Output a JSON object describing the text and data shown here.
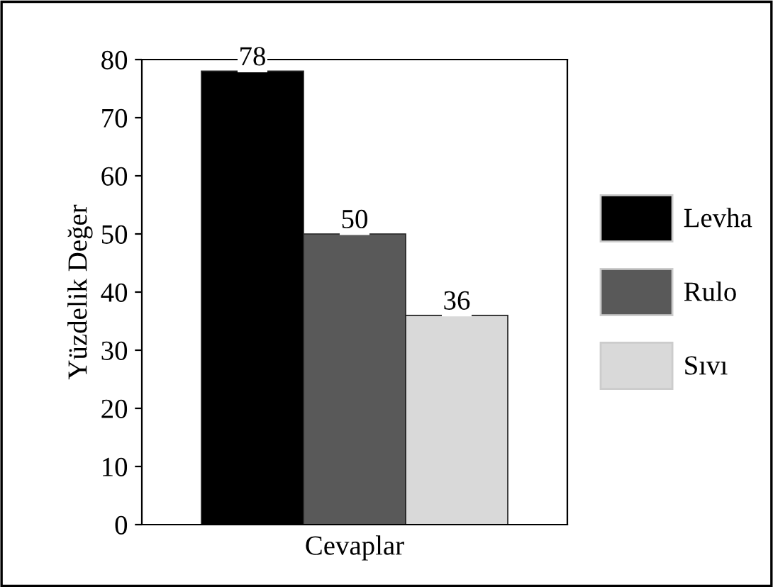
{
  "chart_data": {
    "type": "bar",
    "categories": [
      null
    ],
    "xlabel": "Cevaplar",
    "ylabel": "Yüzdelik Değer",
    "series": [
      {
        "name": "Levha",
        "color": "#000000",
        "values": [
          78
        ]
      },
      {
        "name": "Rulo",
        "color": "#595959",
        "values": [
          50
        ]
      },
      {
        "name": "Sıvı",
        "color": "#d9d9d9",
        "values": [
          36
        ]
      }
    ],
    "ylim": [
      0,
      80
    ],
    "yticks": [
      0,
      10,
      20,
      30,
      40,
      50,
      60,
      70,
      80
    ],
    "data_labels": true,
    "legend": "right",
    "grid": false
  }
}
